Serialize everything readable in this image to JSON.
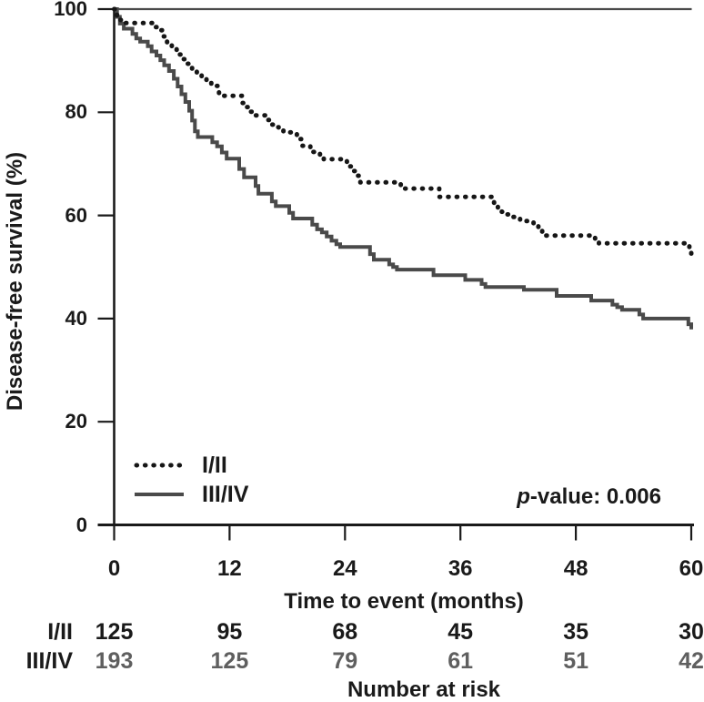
{
  "figure": {
    "y_axis_title": "Disease-free survival (%)",
    "x_axis_title": "Time to event (months)",
    "p_value_italic": "p",
    "p_value_rest": "-value: 0.006"
  },
  "colors": {
    "ink": "#1a1a1a",
    "axis": "#1a1a1a",
    "frame_top": "#4a4a4a",
    "series_1": "#161616",
    "series_2": "#4a4a4a",
    "risk_row_2_text": "#5f5f5f"
  },
  "chart_data": {
    "type": "line",
    "subtype": "kaplan-meier-step",
    "title": "",
    "xlabel": "Time to event (months)",
    "ylabel": "Disease-free survival (%)",
    "xlim": [
      0,
      60
    ],
    "ylim": [
      0,
      100
    ],
    "x_ticks": [
      0,
      12,
      24,
      36,
      48,
      60
    ],
    "y_ticks": [
      0,
      20,
      40,
      60,
      80,
      100
    ],
    "grid": false,
    "legend_position": "inside-lower-left",
    "annotation": "p-value: 0.006",
    "series": [
      {
        "name": "I/II",
        "style": "dotted",
        "color": "#161616",
        "points": [
          [
            0,
            100
          ],
          [
            0.3,
            97.9
          ],
          [
            0.7,
            97.3
          ],
          [
            4.1,
            96.5
          ],
          [
            4.6,
            95.9
          ],
          [
            5.0,
            94.7
          ],
          [
            5.5,
            93.5
          ],
          [
            6.0,
            92.4
          ],
          [
            6.5,
            91.2
          ],
          [
            7.0,
            90.3
          ],
          [
            7.5,
            89.4
          ],
          [
            8.1,
            88.2
          ],
          [
            8.6,
            87.3
          ],
          [
            9.1,
            86.4
          ],
          [
            9.6,
            85.7
          ],
          [
            10.1,
            85.1
          ],
          [
            10.9,
            83.6
          ],
          [
            11.4,
            83.2
          ],
          [
            13.3,
            81.8
          ],
          [
            13.8,
            81.0
          ],
          [
            14.2,
            80.1
          ],
          [
            14.7,
            79.4
          ],
          [
            15.7,
            78.5
          ],
          [
            16.1,
            77.6
          ],
          [
            16.6,
            77.1
          ],
          [
            17.1,
            76.5
          ],
          [
            17.6,
            76.1
          ],
          [
            19.0,
            74.8
          ],
          [
            19.5,
            73.5
          ],
          [
            20.4,
            72.3
          ],
          [
            21.4,
            71.8
          ],
          [
            21.8,
            70.9
          ],
          [
            24.2,
            69.5
          ],
          [
            24.7,
            68.6
          ],
          [
            25.2,
            67.7
          ],
          [
            25.6,
            66.4
          ],
          [
            29.8,
            65.2
          ],
          [
            33.8,
            63.6
          ],
          [
            39.5,
            62.4
          ],
          [
            39.9,
            61.2
          ],
          [
            40.3,
            60.7
          ],
          [
            40.8,
            60.2
          ],
          [
            41.3,
            59.7
          ],
          [
            42.2,
            58.9
          ],
          [
            43.6,
            58.1
          ],
          [
            44.1,
            57.2
          ],
          [
            44.5,
            56.1
          ],
          [
            50.0,
            55.4
          ],
          [
            50.4,
            54.6
          ],
          [
            59.5,
            54.0
          ],
          [
            59.8,
            53.4
          ],
          [
            60,
            52.6
          ]
        ]
      },
      {
        "name": "III/IV",
        "style": "solid",
        "color": "#4a4a4a",
        "points": [
          [
            0,
            100
          ],
          [
            0.3,
            98.5
          ],
          [
            0.6,
            97.2
          ],
          [
            1.0,
            96.2
          ],
          [
            1.9,
            95.2
          ],
          [
            2.3,
            94.3
          ],
          [
            2.7,
            93.7
          ],
          [
            3.5,
            92.8
          ],
          [
            3.9,
            91.8
          ],
          [
            4.4,
            91.0
          ],
          [
            4.8,
            90.1
          ],
          [
            5.2,
            89.1
          ],
          [
            5.7,
            88.0
          ],
          [
            6.2,
            86.5
          ],
          [
            6.6,
            85.0
          ],
          [
            7.0,
            83.5
          ],
          [
            7.4,
            82.0
          ],
          [
            7.8,
            80.3
          ],
          [
            8.1,
            78.4
          ],
          [
            8.4,
            76.3
          ],
          [
            8.7,
            75.2
          ],
          [
            10.2,
            74.2
          ],
          [
            10.7,
            73.4
          ],
          [
            11.2,
            72.2
          ],
          [
            11.7,
            71.0
          ],
          [
            13.0,
            69.0
          ],
          [
            13.5,
            67.4
          ],
          [
            14.7,
            65.7
          ],
          [
            15.0,
            64.2
          ],
          [
            16.4,
            62.7
          ],
          [
            16.8,
            61.8
          ],
          [
            18.2,
            60.5
          ],
          [
            18.6,
            59.4
          ],
          [
            20.6,
            58.2
          ],
          [
            21.1,
            57.3
          ],
          [
            21.6,
            56.7
          ],
          [
            22.1,
            55.9
          ],
          [
            22.6,
            55.1
          ],
          [
            23.1,
            54.4
          ],
          [
            23.5,
            53.9
          ],
          [
            26.6,
            52.5
          ],
          [
            27.0,
            51.4
          ],
          [
            28.6,
            50.5
          ],
          [
            29.0,
            50.0
          ],
          [
            29.4,
            49.5
          ],
          [
            33.2,
            48.4
          ],
          [
            36.5,
            47.5
          ],
          [
            38.2,
            46.7
          ],
          [
            38.6,
            46.1
          ],
          [
            42.6,
            45.6
          ],
          [
            46.0,
            44.4
          ],
          [
            49.6,
            43.5
          ],
          [
            51.8,
            42.7
          ],
          [
            52.3,
            42.2
          ],
          [
            52.8,
            41.7
          ],
          [
            54.6,
            40.8
          ],
          [
            55.0,
            40.0
          ],
          [
            59.7,
            38.9
          ],
          [
            60,
            37.9
          ]
        ]
      }
    ],
    "number_at_risk": {
      "title": "Number at risk",
      "time_points": [
        0,
        12,
        24,
        36,
        48,
        60
      ],
      "rows": [
        {
          "label": "I/II",
          "values": [
            125,
            95,
            68,
            45,
            35,
            30
          ],
          "color": "#1a1a1a"
        },
        {
          "label": "III/IV",
          "values": [
            193,
            125,
            79,
            61,
            51,
            42
          ],
          "color": "#5f5f5f"
        }
      ]
    }
  }
}
